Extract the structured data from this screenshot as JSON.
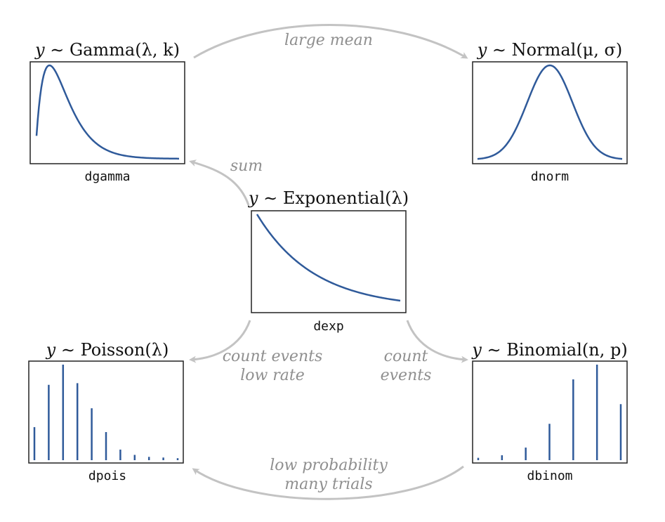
{
  "distributions": {
    "gamma": {
      "title_var": "y",
      "title_sim": " ∼ ",
      "title_name": "Gamma",
      "title_args": "(λ, k)",
      "func": "dgamma"
    },
    "normal": {
      "title_var": "y",
      "title_sim": " ∼ ",
      "title_name": "Normal",
      "title_args": "(μ, σ)",
      "func": "dnorm"
    },
    "exponential": {
      "title_var": "y",
      "title_sim": " ∼ ",
      "title_name": "Exponential",
      "title_args": "(λ)",
      "func": "dexp"
    },
    "poisson": {
      "title_var": "y",
      "title_sim": " ∼ ",
      "title_name": "Poisson",
      "title_args": "(λ)",
      "func": "dpois"
    },
    "binomial": {
      "title_var": "y",
      "title_sim": " ∼ ",
      "title_name": "Binomial",
      "title_args": "(n, p)",
      "func": "dbinom"
    }
  },
  "arrows": {
    "gamma_to_normal": "large mean",
    "exp_to_gamma": "sum",
    "exp_to_poisson_line1": "count events",
    "exp_to_poisson_line2": "low rate",
    "exp_to_binomial_line1": "count",
    "exp_to_binomial_line2": "events",
    "binomial_to_poisson_line1": "low probability",
    "binomial_to_poisson_line2": "many trials"
  },
  "colors": {
    "curve": "#2f5a9a",
    "arrow": "#c3c3c3",
    "arrow_label": "#8f8f8f"
  },
  "chart_data": [
    {
      "type": "line",
      "name": "dgamma",
      "shape": "gamma",
      "k": 2,
      "x_range": [
        0.1,
        10
      ]
    },
    {
      "type": "line",
      "name": "dnorm",
      "shape": "normal",
      "mu": 0,
      "sigma": 1,
      "x_range": [
        -3.2,
        3.2
      ]
    },
    {
      "type": "line",
      "name": "dexp",
      "shape": "exponential",
      "rate": 1,
      "x_range": [
        0,
        2.5
      ]
    },
    {
      "type": "bar",
      "name": "dpois",
      "x": [
        0,
        1,
        2,
        3,
        4,
        5,
        6,
        7,
        8,
        9,
        10
      ],
      "values": [
        0.1,
        0.228,
        0.289,
        0.233,
        0.157,
        0.085,
        0.032,
        0.016,
        0.01,
        0.008,
        0.006
      ]
    },
    {
      "type": "bar",
      "name": "dbinom",
      "x": [
        0,
        1,
        2,
        3,
        4,
        5,
        6
      ],
      "values": [
        0.012,
        0.025,
        0.064,
        0.185,
        0.411,
        0.486,
        0.285
      ]
    }
  ]
}
